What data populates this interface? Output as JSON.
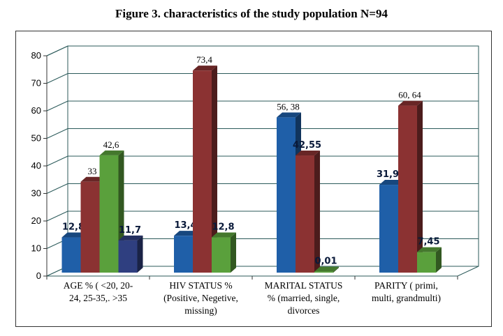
{
  "chart_data": {
    "type": "bar",
    "title": "Figure 3. characteristics of the study population N=94",
    "ylim": [
      0,
      80
    ],
    "yticks": [
      "0",
      "10",
      "20",
      "30",
      "40",
      "50",
      "60",
      "70",
      "80"
    ],
    "grid": true,
    "three_d": true,
    "categories": [
      {
        "label_lines": [
          "AGE %  ( <20, 20-",
          "24, 25-35,. >35"
        ],
        "bars": [
          {
            "value": 12.8,
            "label": "12,8",
            "color": "#1f5fa8",
            "label_style": "bold"
          },
          {
            "value": 33,
            "label": "33",
            "color": "#8b3232",
            "label_style": "serif"
          },
          {
            "value": 42.6,
            "label": "42,6",
            "color": "#5aa03c",
            "label_style": "serif"
          },
          {
            "value": 11.7,
            "label": "11,7",
            "color": "#2f3f80",
            "label_style": "bold"
          }
        ]
      },
      {
        "label_lines": [
          "HIV STATUS %",
          "(Positive, Negetive,",
          "missing)"
        ],
        "bars": [
          {
            "value": 13.4,
            "label": "13,4",
            "color": "#1f5fa8",
            "label_style": "bold"
          },
          {
            "value": 73.4,
            "label": "73,4",
            "color": "#8b3232",
            "label_style": "serif"
          },
          {
            "value": 12.8,
            "label": "12,8",
            "color": "#5aa03c",
            "label_style": "bold"
          }
        ]
      },
      {
        "label_lines": [
          "MARITAL STATUS",
          "% (married, single,",
          "divorces"
        ],
        "bars": [
          {
            "value": 56.38,
            "label": "56, 38",
            "color": "#1f5fa8",
            "label_style": "serif"
          },
          {
            "value": 42.55,
            "label": "42,55",
            "color": "#8b3232",
            "label_style": "bold"
          },
          {
            "value": 0.01,
            "label": "0,01",
            "color": "#5aa03c",
            "label_style": "bold"
          }
        ]
      },
      {
        "label_lines": [
          "PARITY ( primi,",
          "multi, grandmulti)"
        ],
        "bars": [
          {
            "value": 31.91,
            "label": "31,91",
            "color": "#1f5fa8",
            "label_style": "bold"
          },
          {
            "value": 60.64,
            "label": "60, 64",
            "color": "#8b3232",
            "label_style": "serif"
          },
          {
            "value": 7.45,
            "label": "7,45",
            "color": "#5aa03c",
            "label_style": "bold"
          }
        ]
      }
    ]
  }
}
